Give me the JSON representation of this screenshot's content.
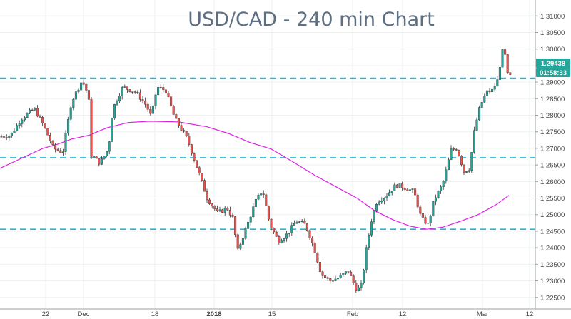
{
  "chart_data": {
    "type": "candlestick",
    "title": "USD/CAD - 240 min Chart",
    "xlabel": "",
    "ylabel": "",
    "ylim": [
      1.2215,
      1.3148
    ],
    "y_ticks": [
      "1.31000",
      "1.30500",
      "1.30000",
      "1.29500",
      "1.29000",
      "1.28500",
      "1.28000",
      "1.27500",
      "1.27000",
      "1.26500",
      "1.26000",
      "1.25500",
      "1.25000",
      "1.24500",
      "1.24000",
      "1.23500",
      "1.23000",
      "1.22500"
    ],
    "x_ticks": [
      "22",
      "Dec",
      "18",
      "2018",
      "15",
      "Feb",
      "12",
      "Mar",
      "12"
    ],
    "grid": true,
    "colors": {
      "up": "#26a69a",
      "down": "#ef5350",
      "moving_average": "#e11ee6",
      "levels": "#29b6d6",
      "last_price_tag": "#26a69a",
      "countdown_tag": "#26a69a"
    },
    "last_price": "1.29438",
    "countdown": "01:58:33",
    "horizontal_levels": [
      1.2912,
      1.2672,
      1.2456
    ],
    "moving_average": [
      {
        "t": 0,
        "v": 1.264
      },
      {
        "t": 20,
        "v": 1.266
      },
      {
        "t": 40,
        "v": 1.268
      },
      {
        "t": 60,
        "v": 1.27
      },
      {
        "t": 80,
        "v": 1.2712
      },
      {
        "t": 100,
        "v": 1.2728
      },
      {
        "t": 125,
        "v": 1.274
      },
      {
        "t": 150,
        "v": 1.2762
      },
      {
        "t": 180,
        "v": 1.2778
      },
      {
        "t": 210,
        "v": 1.2782
      },
      {
        "t": 250,
        "v": 1.278
      },
      {
        "t": 290,
        "v": 1.2765
      },
      {
        "t": 320,
        "v": 1.2745
      },
      {
        "t": 350,
        "v": 1.2718
      },
      {
        "t": 380,
        "v": 1.2698
      },
      {
        "t": 410,
        "v": 1.266
      },
      {
        "t": 440,
        "v": 1.262
      },
      {
        "t": 470,
        "v": 1.2585
      },
      {
        "t": 500,
        "v": 1.255
      },
      {
        "t": 525,
        "v": 1.2512
      },
      {
        "t": 550,
        "v": 1.2485
      },
      {
        "t": 575,
        "v": 1.2465
      },
      {
        "t": 598,
        "v": 1.2456
      },
      {
        "t": 620,
        "v": 1.2462
      },
      {
        "t": 645,
        "v": 1.248
      },
      {
        "t": 670,
        "v": 1.25
      },
      {
        "t": 695,
        "v": 1.253
      },
      {
        "t": 713,
        "v": 1.2558
      }
    ],
    "price_path": [
      {
        "t": 0,
        "v": 1.2735
      },
      {
        "t": 15,
        "v": 1.274
      },
      {
        "t": 30,
        "v": 1.279
      },
      {
        "t": 48,
        "v": 1.282
      },
      {
        "t": 62,
        "v": 1.2765
      },
      {
        "t": 75,
        "v": 1.27
      },
      {
        "t": 88,
        "v": 1.2688
      },
      {
        "t": 100,
        "v": 1.284
      },
      {
        "t": 115,
        "v": 1.2905
      },
      {
        "t": 124,
        "v": 1.286
      },
      {
        "t": 128,
        "v": 1.268
      },
      {
        "t": 140,
        "v": 1.2655
      },
      {
        "t": 152,
        "v": 1.27
      },
      {
        "t": 158,
        "v": 1.282
      },
      {
        "t": 172,
        "v": 1.2885
      },
      {
        "t": 190,
        "v": 1.287
      },
      {
        "t": 205,
        "v": 1.283
      },
      {
        "t": 212,
        "v": 1.2795
      },
      {
        "t": 220,
        "v": 1.2885
      },
      {
        "t": 232,
        "v": 1.2875
      },
      {
        "t": 245,
        "v": 1.279
      },
      {
        "t": 262,
        "v": 1.273
      },
      {
        "t": 278,
        "v": 1.263
      },
      {
        "t": 290,
        "v": 1.255
      },
      {
        "t": 305,
        "v": 1.2505
      },
      {
        "t": 318,
        "v": 1.252
      },
      {
        "t": 326,
        "v": 1.249
      },
      {
        "t": 333,
        "v": 1.239
      },
      {
        "t": 345,
        "v": 1.246
      },
      {
        "t": 358,
        "v": 1.254
      },
      {
        "t": 368,
        "v": 1.2575
      },
      {
        "t": 378,
        "v": 1.247
      },
      {
        "t": 390,
        "v": 1.242
      },
      {
        "t": 402,
        "v": 1.244
      },
      {
        "t": 415,
        "v": 1.248
      },
      {
        "t": 428,
        "v": 1.247
      },
      {
        "t": 440,
        "v": 1.24
      },
      {
        "t": 450,
        "v": 1.232
      },
      {
        "t": 462,
        "v": 1.23
      },
      {
        "t": 475,
        "v": 1.231
      },
      {
        "t": 488,
        "v": 1.233
      },
      {
        "t": 500,
        "v": 1.227
      },
      {
        "t": 507,
        "v": 1.229
      },
      {
        "t": 512,
        "v": 1.238
      },
      {
        "t": 520,
        "v": 1.248
      },
      {
        "t": 528,
        "v": 1.254
      },
      {
        "t": 540,
        "v": 1.2555
      },
      {
        "t": 555,
        "v": 1.259
      },
      {
        "t": 568,
        "v": 1.258
      },
      {
        "t": 580,
        "v": 1.257
      },
      {
        "t": 590,
        "v": 1.249
      },
      {
        "t": 600,
        "v": 1.247
      },
      {
        "t": 608,
        "v": 1.2545
      },
      {
        "t": 620,
        "v": 1.259
      },
      {
        "t": 632,
        "v": 1.2695
      },
      {
        "t": 640,
        "v": 1.27
      },
      {
        "t": 650,
        "v": 1.263
      },
      {
        "t": 658,
        "v": 1.264
      },
      {
        "t": 665,
        "v": 1.276
      },
      {
        "t": 673,
        "v": 1.283
      },
      {
        "t": 682,
        "v": 1.287
      },
      {
        "t": 690,
        "v": 1.2875
      },
      {
        "t": 698,
        "v": 1.291
      },
      {
        "t": 703,
        "v": 1.2995
      },
      {
        "t": 709,
        "v": 1.2975
      },
      {
        "t": 713,
        "v": 1.288
      },
      {
        "t": 716,
        "v": 1.2944
      }
    ]
  }
}
